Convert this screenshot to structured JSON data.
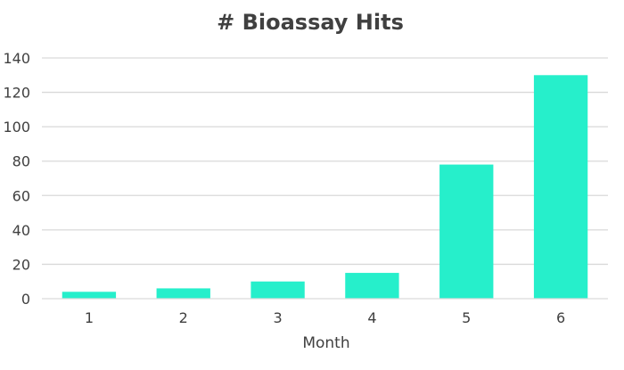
{
  "chart_data": {
    "type": "bar",
    "title": "# Bioassay Hits",
    "xlabel": "Month",
    "ylabel": "",
    "categories": [
      "1",
      "2",
      "3",
      "4",
      "5",
      "6"
    ],
    "values": [
      4,
      6,
      10,
      15,
      78,
      130
    ],
    "ylim": [
      0,
      140
    ],
    "yticks": [
      0,
      20,
      40,
      60,
      80,
      100,
      120,
      140
    ],
    "grid": true,
    "legend": "none",
    "bar_color": "#26EFCB"
  }
}
